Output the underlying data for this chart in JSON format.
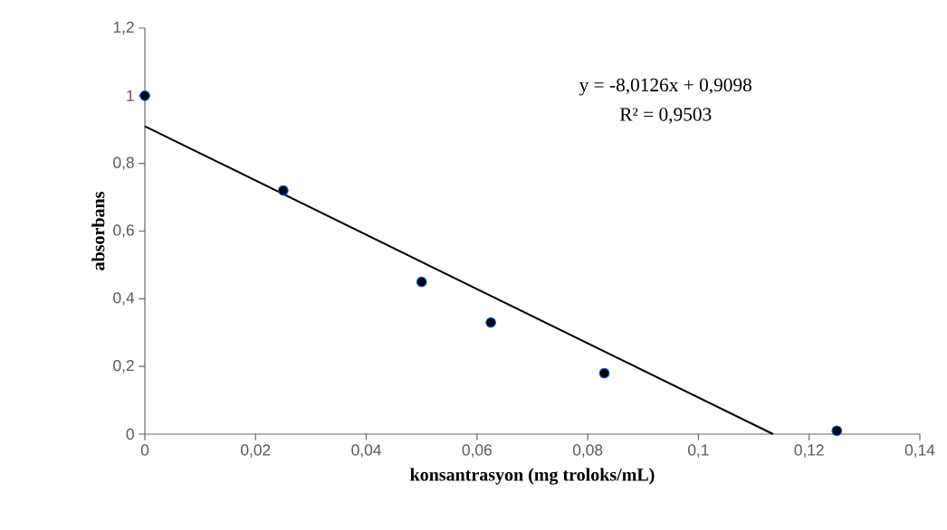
{
  "chart_data": {
    "type": "scatter",
    "xlabel": "konsantrasyon (mg troloks/mL)",
    "ylabel": "absorbans",
    "annotations": [
      "y = -8,0126x + 0,9098",
      "R² = 0,9503"
    ],
    "series": [
      {
        "color": "#000000",
        "marker": "circle",
        "x": [
          0,
          0.025,
          0.05,
          0.0625,
          0.083,
          0.125
        ],
        "values": [
          1.0,
          0.72,
          0.45,
          0.33,
          0.18,
          0.01
        ]
      },
      {
        "type": "line",
        "marker": "none",
        "color": "#000000",
        "x": [
          0,
          0.1135
        ],
        "values": [
          0.9098,
          0
        ]
      }
    ],
    "xlim": [
      0,
      0.14
    ],
    "ylim": [
      0,
      1.2
    ],
    "xticks": [
      0,
      {
        "value": 0.02,
        "label": "0,02"
      },
      {
        "value": 0.04,
        "label": "0,04"
      },
      {
        "value": 0.06,
        "label": "0,06"
      },
      {
        "value": 0.08,
        "label": "0,08"
      },
      {
        "value": 0.1,
        "label": "0,1"
      },
      {
        "value": 0.12,
        "label": "0,12"
      },
      {
        "value": 0.14,
        "label": "0,14"
      }
    ],
    "yticks": [
      0,
      {
        "value": 0.2,
        "label": "0,2"
      },
      {
        "value": 0.4,
        "label": "0,4"
      },
      {
        "value": 0.6,
        "label": "0,6"
      },
      {
        "value": 0.8,
        "label": "0,8"
      },
      1,
      {
        "value": 1.2,
        "label": "1,2"
      }
    ],
    "grid": false
  }
}
